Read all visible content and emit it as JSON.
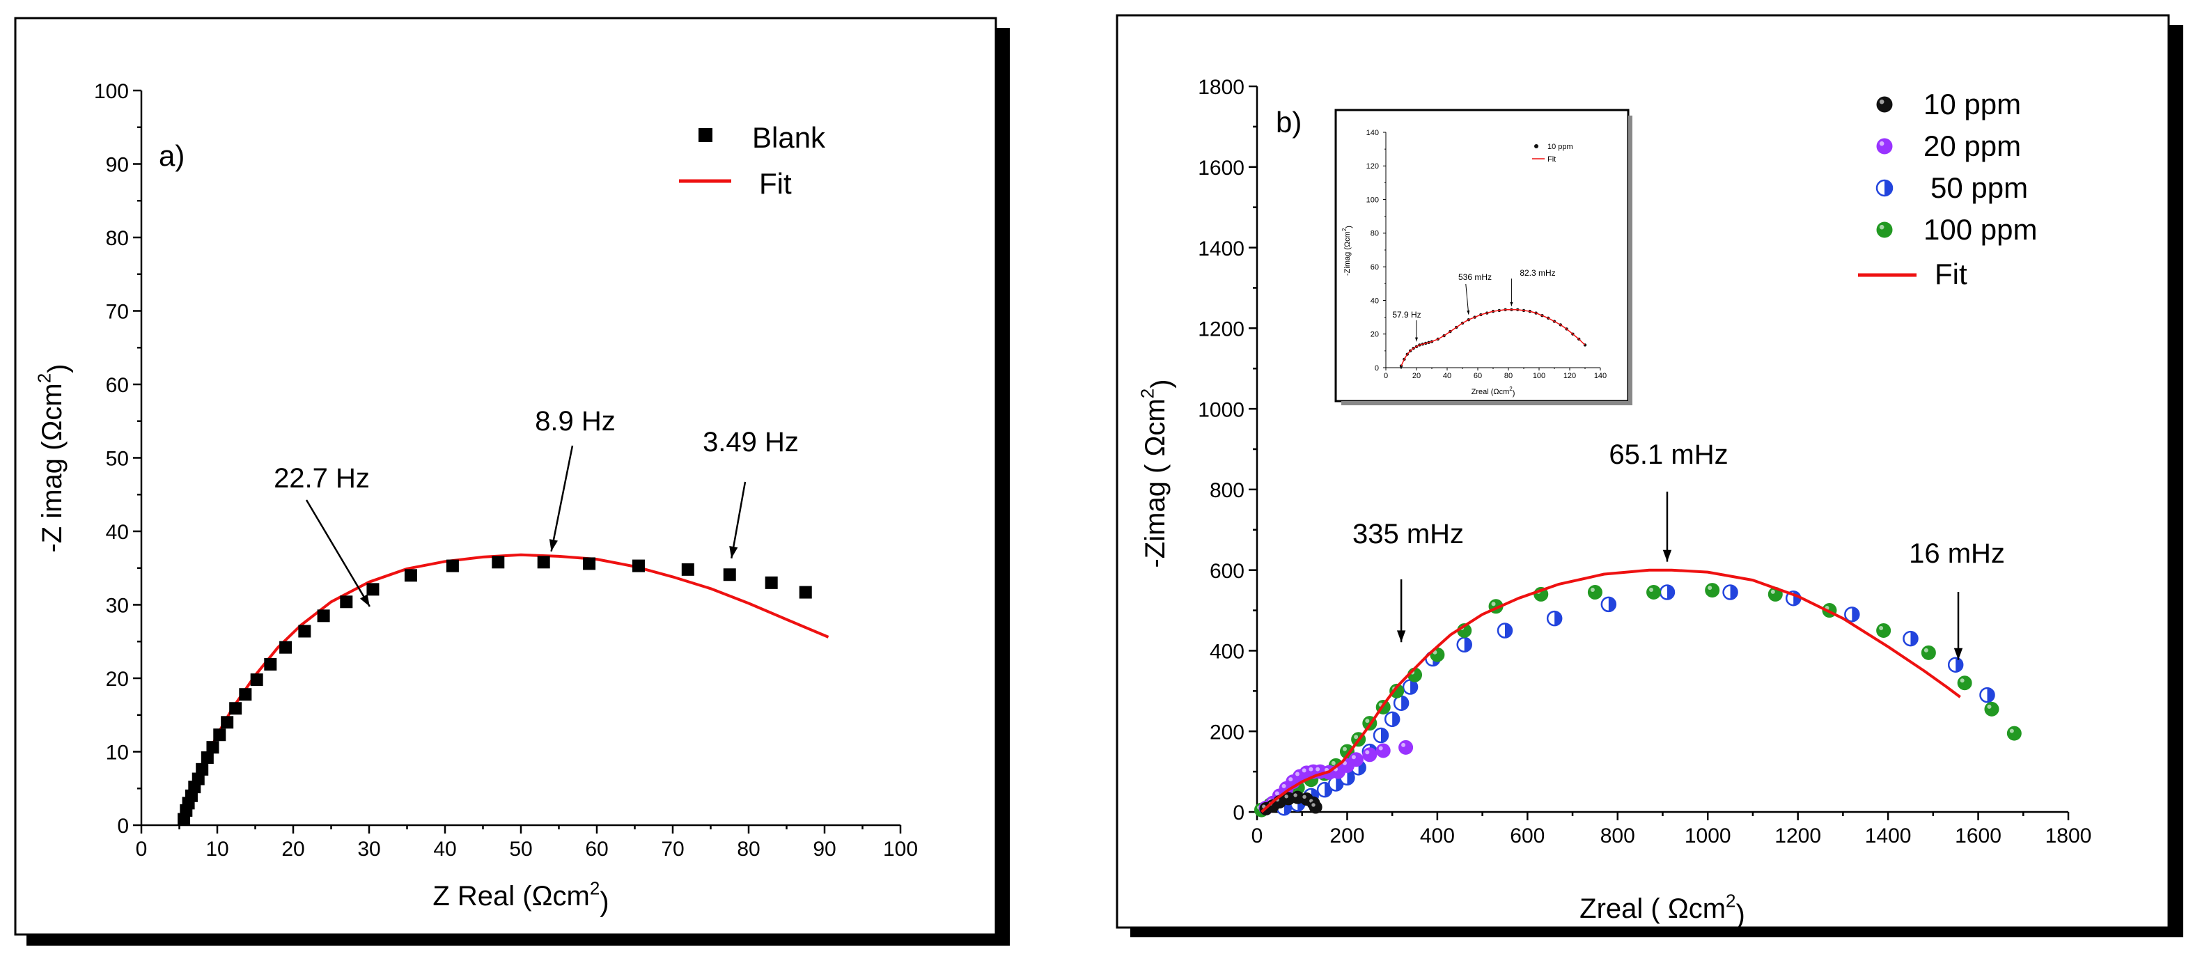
{
  "chart_data": [
    {
      "type": "scatter",
      "panel_label": "a)",
      "xlabel": "Z Real (Ωcm²)",
      "ylabel": "-Z imag (Ωcm²)",
      "xlim": [
        0,
        100
      ],
      "ylim": [
        0,
        100
      ],
      "xticks": [
        "0",
        "10",
        "20",
        "30",
        "40",
        "50",
        "60",
        "70",
        "80",
        "90",
        "100"
      ],
      "yticks": [
        "0",
        "10",
        "20",
        "30",
        "40",
        "50",
        "60",
        "70",
        "80",
        "90",
        "100"
      ],
      "legend_position": "top-right",
      "series": [
        {
          "name": "Blank",
          "marker": "square",
          "color": "#000000",
          "x": [
            5.6,
            5.9,
            6.2,
            6.6,
            7.0,
            7.5,
            8.0,
            8.7,
            9.4,
            10.3,
            11.3,
            12.4,
            13.7,
            15.2,
            17.0,
            19.0,
            21.5,
            24.0,
            27.0,
            30.5,
            35.5,
            41.0,
            47.0,
            53.0,
            59.0,
            65.5,
            72.0,
            77.5,
            83.0,
            87.5
          ],
          "y": [
            0.8,
            2.0,
            3.0,
            4.0,
            5.2,
            6.3,
            7.6,
            9.2,
            10.6,
            12.3,
            14.0,
            15.9,
            17.8,
            19.8,
            21.9,
            24.2,
            26.4,
            28.5,
            30.4,
            32.1,
            34.0,
            35.3,
            35.8,
            35.8,
            35.6,
            35.3,
            34.8,
            34.1,
            33.0,
            31.7
          ]
        },
        {
          "name": "Fit",
          "type": "line",
          "color": "#ee1111",
          "x": [
            5.5,
            6,
            7,
            8,
            10,
            12,
            15,
            18,
            21,
            25,
            30,
            35,
            40,
            45,
            50,
            55,
            60,
            65,
            70,
            75,
            80,
            85,
            90.5
          ],
          "y": [
            0,
            2.3,
            5.5,
            8.0,
            12.3,
            15.9,
            20.4,
            24.2,
            27.2,
            30.4,
            33.1,
            34.9,
            35.9,
            36.5,
            36.8,
            36.6,
            36.2,
            35.2,
            33.8,
            32.2,
            30.2,
            28.0,
            25.6
          ]
        }
      ],
      "annotations": [
        {
          "text": "22.7 Hz",
          "x": 31,
          "y": 29
        },
        {
          "text": "8.9 Hz",
          "x": 54,
          "y": 36.5
        },
        {
          "text": "3.49 Hz",
          "x": 77,
          "y": 35
        }
      ]
    },
    {
      "type": "scatter",
      "panel_label": "b)",
      "xlabel": "Zreal ( Ωcm²)",
      "ylabel": "-Zimag ( Ωcm²)",
      "xlim": [
        0,
        1800
      ],
      "ylim": [
        0,
        1800
      ],
      "xticks": [
        "0",
        "200",
        "400",
        "600",
        "800",
        "1000",
        "1200",
        "1400",
        "1600",
        "1800"
      ],
      "yticks": [
        "0",
        "200",
        "400",
        "600",
        "800",
        "1000",
        "1200",
        "1400",
        "1600",
        "1800"
      ],
      "legend_position": "top-right",
      "series": [
        {
          "name": "10 ppm",
          "color": "#111111",
          "x": [
            20,
            35,
            50,
            70,
            90,
            110,
            125,
            130
          ],
          "y": [
            8,
            15,
            25,
            33,
            36,
            32,
            22,
            12
          ]
        },
        {
          "name": "20 ppm",
          "color": "#9933ff",
          "x": [
            20,
            35,
            50,
            65,
            80,
            95,
            110,
            125,
            140,
            160,
            180,
            200,
            220,
            250,
            280,
            330
          ],
          "y": [
            10,
            22,
            40,
            58,
            75,
            88,
            97,
            100,
            100,
            98,
            100,
            115,
            130,
            142,
            152,
            160
          ]
        },
        {
          "name": "50 ppm",
          "color": "#2244dd",
          "x": [
            60,
            90,
            120,
            150,
            175,
            200,
            225,
            250,
            275,
            300,
            320,
            340,
            390,
            460,
            550,
            660,
            780,
            910,
            1050,
            1190,
            1320,
            1450,
            1550,
            1620
          ],
          "y": [
            10,
            20,
            40,
            55,
            70,
            85,
            110,
            150,
            190,
            230,
            270,
            310,
            380,
            415,
            450,
            480,
            515,
            545,
            545,
            530,
            490,
            430,
            365,
            290
          ]
        },
        {
          "name": "100 ppm",
          "color": "#229922",
          "x": [
            10,
            30,
            60,
            90,
            120,
            150,
            175,
            200,
            225,
            250,
            280,
            310,
            350,
            400,
            460,
            530,
            630,
            750,
            880,
            1010,
            1150,
            1270,
            1390,
            1490,
            1570,
            1630,
            1680
          ],
          "y": [
            5,
            18,
            40,
            60,
            80,
            95,
            115,
            150,
            180,
            220,
            260,
            300,
            340,
            390,
            450,
            510,
            540,
            545,
            545,
            550,
            540,
            500,
            450,
            395,
            320,
            255,
            195
          ]
        },
        {
          "name": "Fit",
          "type": "line",
          "color": "#ee1111",
          "x": [
            10,
            40,
            70,
            100,
            130,
            160,
            190,
            220,
            250,
            280,
            310,
            340,
            380,
            430,
            500,
            580,
            670,
            770,
            870,
            920,
            1000,
            1100,
            1200,
            1300,
            1400,
            1480,
            1530,
            1560
          ],
          "y": [
            0,
            30,
            55,
            75,
            90,
            100,
            125,
            170,
            215,
            265,
            310,
            345,
            390,
            440,
            490,
            530,
            565,
            590,
            600,
            600,
            595,
            575,
            535,
            480,
            410,
            350,
            310,
            285
          ]
        }
      ],
      "annotations": [
        {
          "text": "335 mHz",
          "x": 320,
          "y": 390
        },
        {
          "text": "65.1 mHz",
          "x": 910,
          "y": 600
        },
        {
          "text": "16 mHz",
          "x": 1550,
          "y": 360
        }
      ],
      "inset": {
        "xlabel": "Zreal (Ωcm²)",
        "ylabel": "-Zimag (Ωcm²)",
        "xlim": [
          0,
          140
        ],
        "ylim": [
          0,
          140
        ],
        "xticks": [
          "0",
          "20",
          "40",
          "60",
          "80",
          "100",
          "120",
          "140"
        ],
        "yticks": [
          "0",
          "20",
          "40",
          "60",
          "80",
          "100",
          "120",
          "140"
        ],
        "series": [
          {
            "name": "10 ppm",
            "color": "#111111",
            "x": [
              10,
              12,
              14,
              16,
              18,
              20,
              22,
              24,
              26,
              28,
              30,
              34,
              38,
              42,
              46,
              50,
              54,
              58,
              62,
              66,
              70,
              74,
              78,
              82,
              86,
              90,
              94,
              98,
              102,
              106,
              110,
              114,
              118,
              122,
              126,
              130
            ],
            "y": [
              1,
              5,
              8,
              10,
              11.5,
              12.5,
              13.5,
              14,
              14.5,
              15,
              15.5,
              17,
              19,
              21.5,
              24,
              26.5,
              28.5,
              30,
              31.5,
              32.5,
              33.5,
              34,
              34.5,
              34.5,
              34.5,
              34,
              33.5,
              32.5,
              31,
              29.5,
              27.5,
              25.5,
              23,
              20,
              17,
              13.5
            ]
          },
          {
            "name": "Fit",
            "type": "line",
            "color": "#ee1111",
            "x": [
              10,
              12,
              14,
              16,
              18,
              20,
              22,
              24,
              26,
              28,
              30,
              34,
              38,
              42,
              46,
              50,
              54,
              58,
              62,
              66,
              70,
              74,
              78,
              82,
              86,
              90,
              94,
              98,
              102,
              106,
              110,
              114,
              118,
              122,
              126,
              130
            ],
            "y": [
              1,
              5,
              8,
              10,
              11.5,
              12.5,
              13.5,
              14,
              14.5,
              15,
              15.5,
              17,
              19,
              21.5,
              24,
              26.5,
              28.5,
              30,
              31.5,
              32.5,
              33.5,
              34,
              34.5,
              34.5,
              34.5,
              34,
              33.5,
              32.5,
              31,
              29.5,
              27.5,
              25.5,
              23,
              20,
              17,
              13.5
            ]
          }
        ],
        "annotations": [
          {
            "text": "57.9 Hz",
            "x": 20,
            "y": 14
          },
          {
            "text": "536 mHz",
            "x": 54,
            "y": 30
          },
          {
            "text": "82.3 mHz",
            "x": 82,
            "y": 35
          }
        ]
      }
    }
  ]
}
